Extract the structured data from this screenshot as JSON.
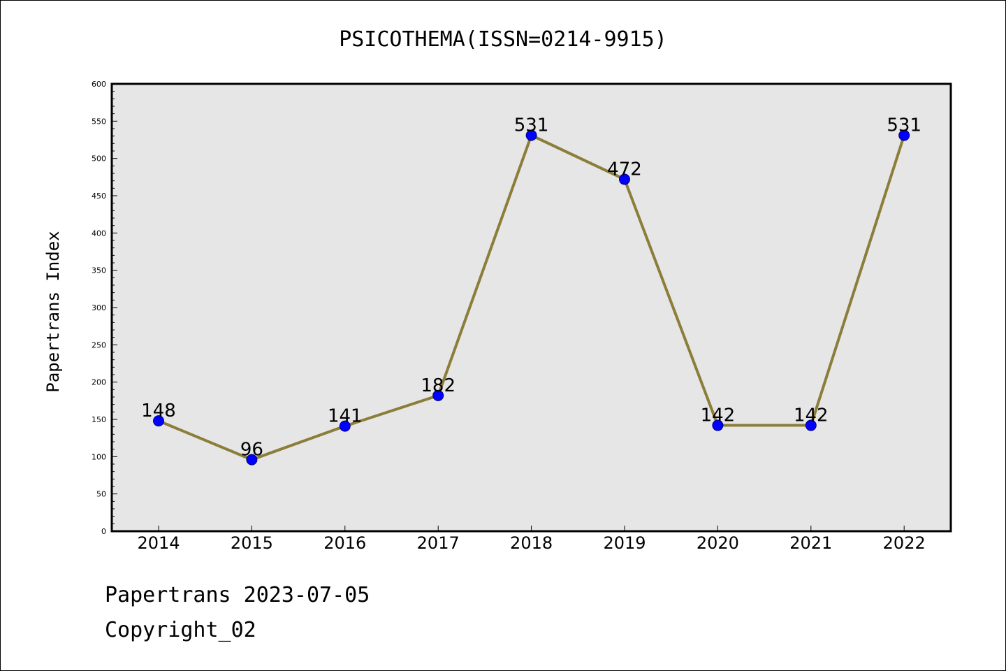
{
  "colors": {
    "plot_background": "#e6e6e6",
    "line": "#8b7d3a",
    "marker": "#0000ff",
    "marker_edge": "#000080",
    "axis": "#000000"
  },
  "chart_data": {
    "type": "line",
    "title": "PSICOTHEMA(ISSN=0214-9915)",
    "xlabel": "",
    "ylabel": "Papertrans Index",
    "categories": [
      "2014",
      "2015",
      "2016",
      "2017",
      "2018",
      "2019",
      "2020",
      "2021",
      "2022"
    ],
    "values": [
      148,
      96,
      141,
      182,
      531,
      472,
      142,
      142,
      531
    ],
    "ylim": [
      0,
      600
    ],
    "yticks": [
      0,
      50,
      100,
      150,
      200,
      250,
      300,
      350,
      400,
      450,
      500,
      550,
      600
    ],
    "grid": false,
    "data_labels": true
  },
  "footer": {
    "line1": "Papertrans 2023-07-05",
    "line2": "Copyright_02"
  }
}
